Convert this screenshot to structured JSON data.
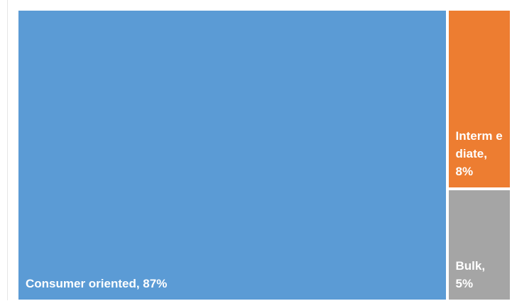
{
  "chart_data": {
    "type": "treemap",
    "title": "",
    "items": [
      {
        "label": "Consumer oriented, 87%",
        "category": "Consumer oriented",
        "value": 87,
        "unit": "%",
        "color": "#5B9BD5"
      },
      {
        "label": "Interm ediate, 8%",
        "category": "Intermediate",
        "value": 8,
        "unit": "%",
        "color": "#ED7D31"
      },
      {
        "label": "Bulk, 5%",
        "category": "Bulk",
        "value": 5,
        "unit": "%",
        "color": "#A5A5A5"
      }
    ],
    "legend": "none",
    "grid": false
  }
}
